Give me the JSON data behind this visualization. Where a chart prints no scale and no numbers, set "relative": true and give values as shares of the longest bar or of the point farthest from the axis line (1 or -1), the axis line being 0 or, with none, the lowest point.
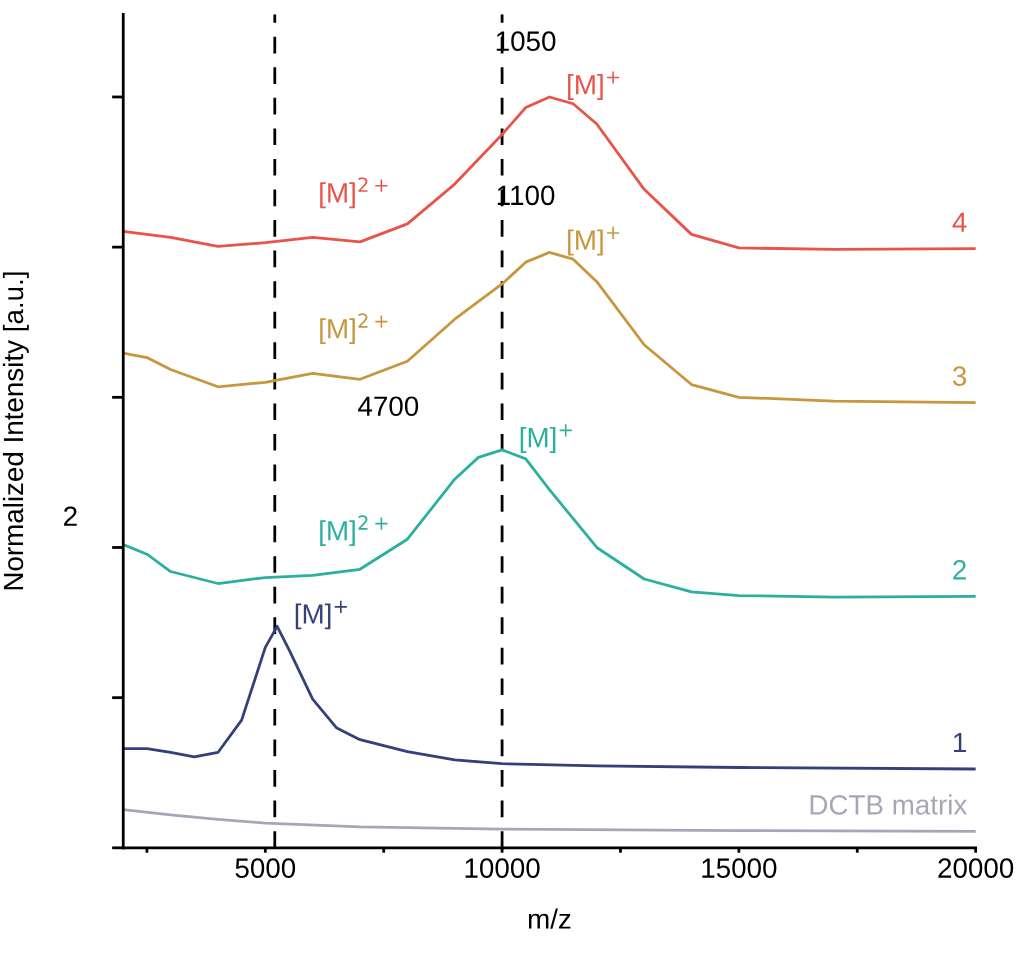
{
  "chart_data": {
    "type": "line",
    "xlabel": "m/z",
    "ylabel": "Normalized Intensity [a.u.]",
    "relative": true,
    "xlim": [
      2000,
      20000
    ],
    "xticks": [
      {
        "value": 2500,
        "label": null
      },
      5000,
      {
        "value": 7500,
        "label": null
      },
      10000,
      {
        "value": 12500,
        "label": null
      },
      15000,
      {
        "value": 17500,
        "label": null
      },
      20000
    ],
    "grid": false,
    "legend": false,
    "series": [
      {
        "name": "DCTB matrix",
        "color": "#a8a6b4",
        "x": [
          2000,
          3000,
          4000,
          5000,
          7000,
          10000,
          15000,
          20000
        ],
        "values": [
          0.051,
          0.044,
          0.038,
          0.033,
          0.028,
          0.025,
          0.023,
          0.022
        ]
      },
      {
        "name": "1",
        "color": "#34407a",
        "x": [
          2000,
          2500,
          3000,
          3500,
          4000,
          4500,
          5000,
          5250,
          5500,
          6000,
          6500,
          7000,
          8000,
          9000,
          10000,
          12000,
          15000,
          20000
        ],
        "values": [
          0.132,
          0.132,
          0.127,
          0.121,
          0.127,
          0.17,
          0.267,
          0.295,
          0.264,
          0.198,
          0.16,
          0.144,
          0.128,
          0.117,
          0.112,
          0.109,
          0.107,
          0.105
        ]
      },
      {
        "name": "2",
        "color": "#2bb0a0",
        "x": [
          2000,
          2500,
          3000,
          4000,
          5000,
          6000,
          7000,
          8000,
          9000,
          9500,
          10000,
          10500,
          11000,
          12000,
          13000,
          14000,
          15000,
          17000,
          20000
        ],
        "values": [
          0.404,
          0.391,
          0.368,
          0.352,
          0.36,
          0.363,
          0.371,
          0.411,
          0.491,
          0.52,
          0.53,
          0.518,
          0.477,
          0.4,
          0.358,
          0.341,
          0.336,
          0.334,
          0.335
        ]
      },
      {
        "name": "3",
        "color": "#c8963e",
        "x": [
          2000,
          2500,
          3000,
          4000,
          5000,
          6000,
          7000,
          8000,
          9000,
          10000,
          10500,
          11000,
          11500,
          12000,
          13000,
          14000,
          15000,
          17000,
          20000
        ],
        "values": [
          0.659,
          0.653,
          0.637,
          0.614,
          0.62,
          0.632,
          0.624,
          0.648,
          0.704,
          0.751,
          0.78,
          0.793,
          0.784,
          0.754,
          0.67,
          0.617,
          0.6,
          0.595,
          0.593
        ]
      },
      {
        "name": "4",
        "color": "#e8534a",
        "x": [
          2000,
          3000,
          4000,
          5000,
          6000,
          7000,
          8000,
          9000,
          10000,
          10500,
          11000,
          11500,
          12000,
          13000,
          14000,
          15000,
          17000,
          20000
        ],
        "values": [
          0.821,
          0.813,
          0.801,
          0.806,
          0.813,
          0.807,
          0.831,
          0.884,
          0.95,
          0.986,
          1,
          0.991,
          0.964,
          0.877,
          0.817,
          0.799,
          0.797,
          0.798
        ]
      }
    ],
    "ref_lines": [
      {
        "axis": "x",
        "value": 10000,
        "color": "#000000",
        "line_style": "dashed"
      },
      {
        "axis": "x",
        "value": 5200,
        "color": "#000000",
        "line_style": "dashed"
      }
    ],
    "annotations": [
      {
        "text": "[M]$^{+}$",
        "x": 11000,
        "y": 1
      },
      {
        "text": "[M]$^{2+}$",
        "x": 6000,
        "y": 0.813
      },
      {
        "text": "[M]$^{+}$",
        "x": 11000,
        "y": 0.793
      },
      {
        "text": "[M]$^{2+}$",
        "x": 6000,
        "y": 0.632
      },
      {
        "text": "[M]$^{+}$",
        "x": 10000,
        "y": 0.53
      },
      {
        "text": "[M]$^{2+}$",
        "x": 6000,
        "y": 0.363
      },
      {
        "text": "[M]$^{+}$",
        "x": 5250,
        "y": 0.295
      },
      "1050",
      "1100",
      "4700",
      "2"
    ]
  }
}
